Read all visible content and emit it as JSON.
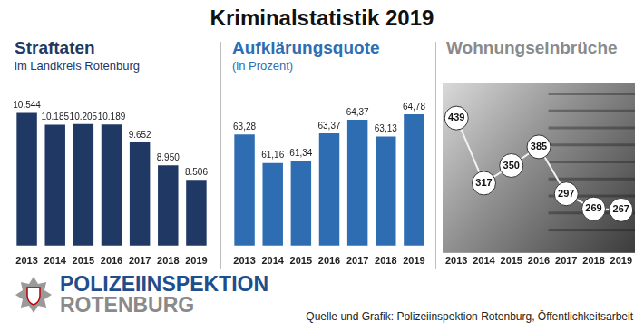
{
  "header": {
    "title": "Kriminalstatistik 2019"
  },
  "footer": {
    "logo": {
      "line1": "POLIZEIINSPEKTION",
      "line2": "ROTENBURG"
    },
    "source": "Quelle und Grafik: Polizeiinspektion Rotenburg, Öffentlichkeitsarbeit"
  },
  "chart_data": [
    {
      "type": "bar",
      "title": "Straftaten",
      "subtitle": "im Landkreis Rotenburg",
      "categories": [
        "2013",
        "2014",
        "2015",
        "2016",
        "2017",
        "2018",
        "2019"
      ],
      "values": [
        10544,
        10185,
        10205,
        10189,
        9652,
        8950,
        8506
      ],
      "value_labels": [
        "10.544",
        "10.185",
        "10.205",
        "10.189",
        "9.652",
        "8.950",
        "8.506"
      ],
      "color": "#1f3864",
      "ylim": [
        6500,
        11000
      ],
      "data_labels": true,
      "tick_labels": "x",
      "grid": false
    },
    {
      "type": "bar",
      "title": "Aufklärungsquote",
      "subtitle": "(in Prozent)",
      "categories": [
        "2013",
        "2014",
        "2015",
        "2016",
        "2017",
        "2018",
        "2019"
      ],
      "values": [
        63.28,
        61.16,
        61.34,
        63.37,
        64.37,
        63.13,
        64.78
      ],
      "value_labels": [
        "63,28",
        "61,16",
        "61,34",
        "63,37",
        "64,37",
        "63,13",
        "64,78"
      ],
      "color": "#2f6db3",
      "ylim": [
        55,
        66
      ],
      "data_labels": true,
      "tick_labels": "x",
      "grid": false
    },
    {
      "type": "line",
      "title": "Wohnungseinbrüche",
      "categories": [
        "2013",
        "2014",
        "2015",
        "2016",
        "2017",
        "2018",
        "2019"
      ],
      "values": [
        439,
        317,
        350,
        385,
        297,
        269,
        267
      ],
      "color": "#f2f2f2",
      "marker": "circle",
      "ylim": [
        200,
        480
      ],
      "data_labels": true,
      "tick_labels": "x",
      "grid": false
    }
  ]
}
